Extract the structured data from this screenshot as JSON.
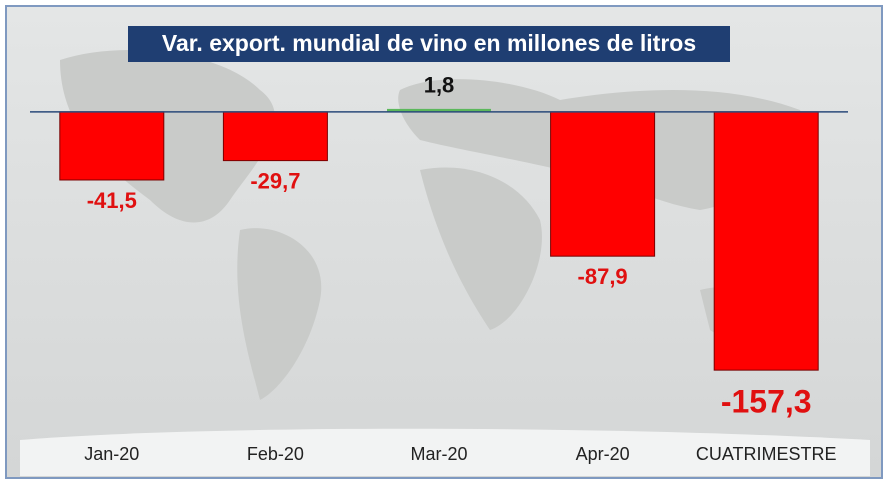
{
  "chart_data": {
    "type": "bar",
    "title": "Var. export. mundial de vino en millones de litros",
    "categories": [
      "Jan-20",
      "Feb-20",
      "Mar-20",
      "Apr-20",
      "CUATRIMESTRE"
    ],
    "values": [
      -41.5,
      -29.7,
      1.8,
      -87.9,
      -157.3
    ],
    "value_labels": [
      "-41,5",
      "-29,7",
      "1,8",
      "-87,9",
      "-157,3"
    ],
    "colors": [
      "#ff0000",
      "#ff0000",
      "#5cb85c",
      "#ff0000",
      "#ff0000"
    ],
    "ylim": [
      -170,
      20
    ]
  }
}
